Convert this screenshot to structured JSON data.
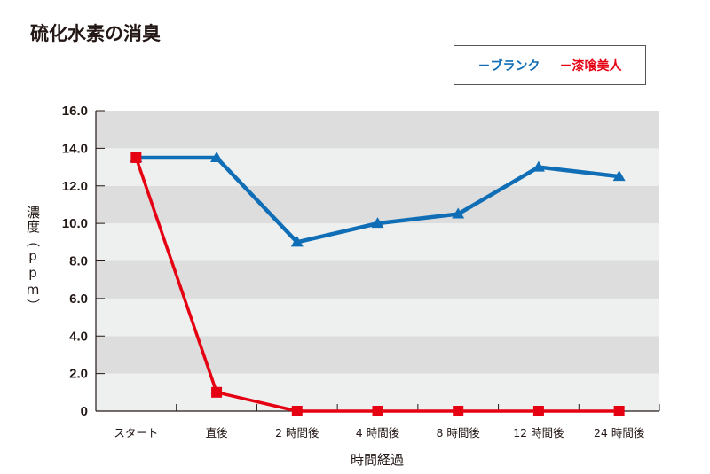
{
  "chart_data": {
    "type": "line",
    "title": "硫化水素の消臭",
    "xlabel": "時間経過",
    "ylabel": "濃度（ppm）",
    "categories": [
      "スタート",
      "直後",
      "2 時間後",
      "4 時間後",
      "8 時間後",
      "12 時間後",
      "24 時間後"
    ],
    "ylim": [
      0,
      16
    ],
    "yticks": [
      "0",
      "2.0",
      "4.0",
      "6.0",
      "8.0",
      "10.0",
      "12.0",
      "14.0",
      "16.0"
    ],
    "grid": "alternating horizontal bands",
    "legend_position": "top-right",
    "series": [
      {
        "name": "ブランク",
        "marker": "triangle",
        "color": "#0f6eb6",
        "values": [
          13.5,
          13.5,
          9.0,
          10.0,
          10.5,
          13.0,
          12.5
        ]
      },
      {
        "name": "漆喰美人",
        "marker": "square",
        "color": "#e50012",
        "values": [
          13.5,
          1.0,
          0,
          0,
          0,
          0,
          0
        ]
      }
    ],
    "band_colors": [
      "#eef0ef",
      "#dcdddc"
    ]
  },
  "legend": {
    "dash": "－"
  }
}
